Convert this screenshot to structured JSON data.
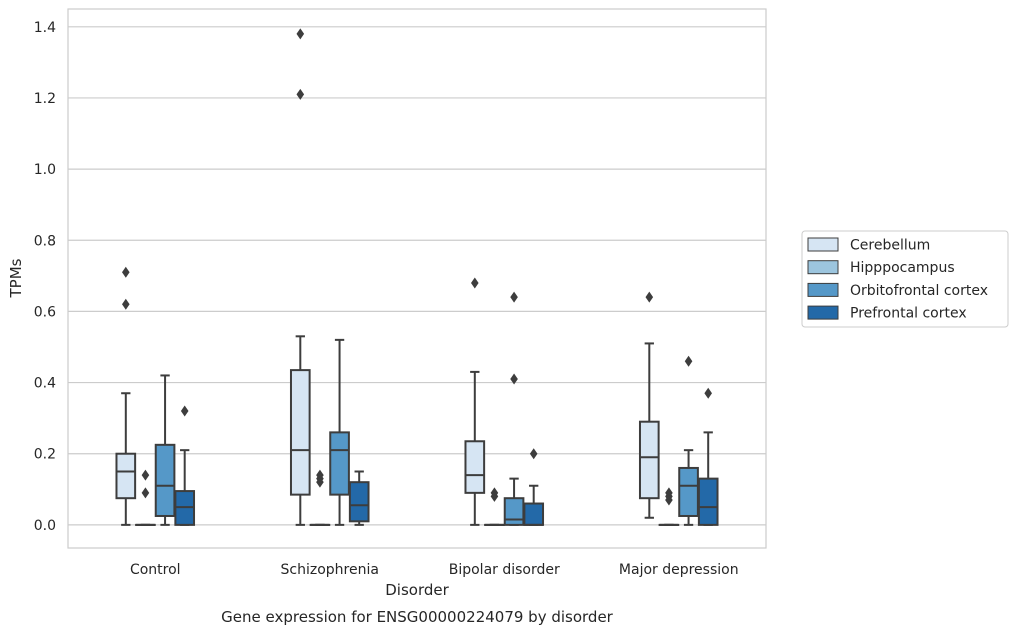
{
  "chart_data": {
    "type": "box",
    "title": "",
    "caption": "Gene expression for ENSG00000224079 by disorder",
    "xlabel": "Disorder",
    "ylabel": "TPMs",
    "ylim": [
      -0.065,
      1.45
    ],
    "yticks": [
      0.0,
      0.2,
      0.4,
      0.6,
      0.8,
      1.0,
      1.2,
      1.4
    ],
    "ytick_labels": [
      "0.0",
      "0.2",
      "0.4",
      "0.6",
      "0.8",
      "1.0",
      "1.2",
      "1.4"
    ],
    "grid": "horizontal",
    "legend_position": "right",
    "categories": [
      "Control",
      "Schizophrenia",
      "Bipolar disorder",
      "Major depression"
    ],
    "series": [
      {
        "name": "Cerebellum",
        "color": "#d6e5f3",
        "boxes": [
          {
            "whislo": 0.0,
            "q1": 0.075,
            "med": 0.15,
            "q3": 0.2,
            "whishi": 0.37,
            "fliers": [
              0.71,
              0.62
            ]
          },
          {
            "whislo": 0.0,
            "q1": 0.085,
            "med": 0.21,
            "q3": 0.435,
            "whishi": 0.53,
            "fliers": [
              1.38,
              1.21
            ]
          },
          {
            "whislo": 0.0,
            "q1": 0.09,
            "med": 0.14,
            "q3": 0.235,
            "whishi": 0.43,
            "fliers": [
              0.68
            ]
          },
          {
            "whislo": 0.02,
            "q1": 0.075,
            "med": 0.19,
            "q3": 0.29,
            "whishi": 0.51,
            "fliers": [
              0.64
            ]
          }
        ]
      },
      {
        "name": "Hipppocampus",
        "color": "#9cc5de",
        "boxes": [
          {
            "whislo": 0.0,
            "q1": 0.0,
            "med": 0.0,
            "q3": 0.0,
            "whishi": 0.0,
            "fliers": [
              0.14,
              0.09
            ]
          },
          {
            "whislo": 0.0,
            "q1": 0.0,
            "med": 0.0,
            "q3": 0.0,
            "whishi": 0.0,
            "fliers": [
              0.14,
              0.13,
              0.12
            ]
          },
          {
            "whislo": 0.0,
            "q1": 0.0,
            "med": 0.0,
            "q3": 0.0,
            "whishi": 0.0,
            "fliers": [
              0.09,
              0.08
            ]
          },
          {
            "whislo": 0.0,
            "q1": 0.0,
            "med": 0.0,
            "q3": 0.0,
            "whishi": 0.0,
            "fliers": [
              0.09,
              0.08,
              0.07
            ]
          }
        ]
      },
      {
        "name": "Orbitofrontal cortex",
        "color": "#5598c8",
        "boxes": [
          {
            "whislo": 0.0,
            "q1": 0.025,
            "med": 0.11,
            "q3": 0.225,
            "whishi": 0.42,
            "fliers": []
          },
          {
            "whislo": 0.0,
            "q1": 0.085,
            "med": 0.21,
            "q3": 0.26,
            "whishi": 0.52,
            "fliers": []
          },
          {
            "whislo": 0.0,
            "q1": 0.0,
            "med": 0.015,
            "q3": 0.075,
            "whishi": 0.13,
            "fliers": [
              0.64,
              0.41
            ]
          },
          {
            "whislo": 0.0,
            "q1": 0.025,
            "med": 0.11,
            "q3": 0.16,
            "whishi": 0.21,
            "fliers": [
              0.46
            ]
          }
        ]
      },
      {
        "name": "Prefrontal cortex",
        "color": "#2369a8",
        "boxes": [
          {
            "whislo": 0.0,
            "q1": 0.0,
            "med": 0.05,
            "q3": 0.095,
            "whishi": 0.21,
            "fliers": [
              0.32
            ]
          },
          {
            "whislo": 0.0,
            "q1": 0.01,
            "med": 0.055,
            "q3": 0.12,
            "whishi": 0.15,
            "fliers": []
          },
          {
            "whislo": 0.0,
            "q1": 0.0,
            "med": 0.0,
            "q3": 0.06,
            "whishi": 0.11,
            "fliers": [
              0.2
            ]
          },
          {
            "whislo": 0.0,
            "q1": 0.0,
            "med": 0.05,
            "q3": 0.13,
            "whishi": 0.26,
            "fliers": [
              0.37
            ]
          }
        ]
      }
    ]
  }
}
